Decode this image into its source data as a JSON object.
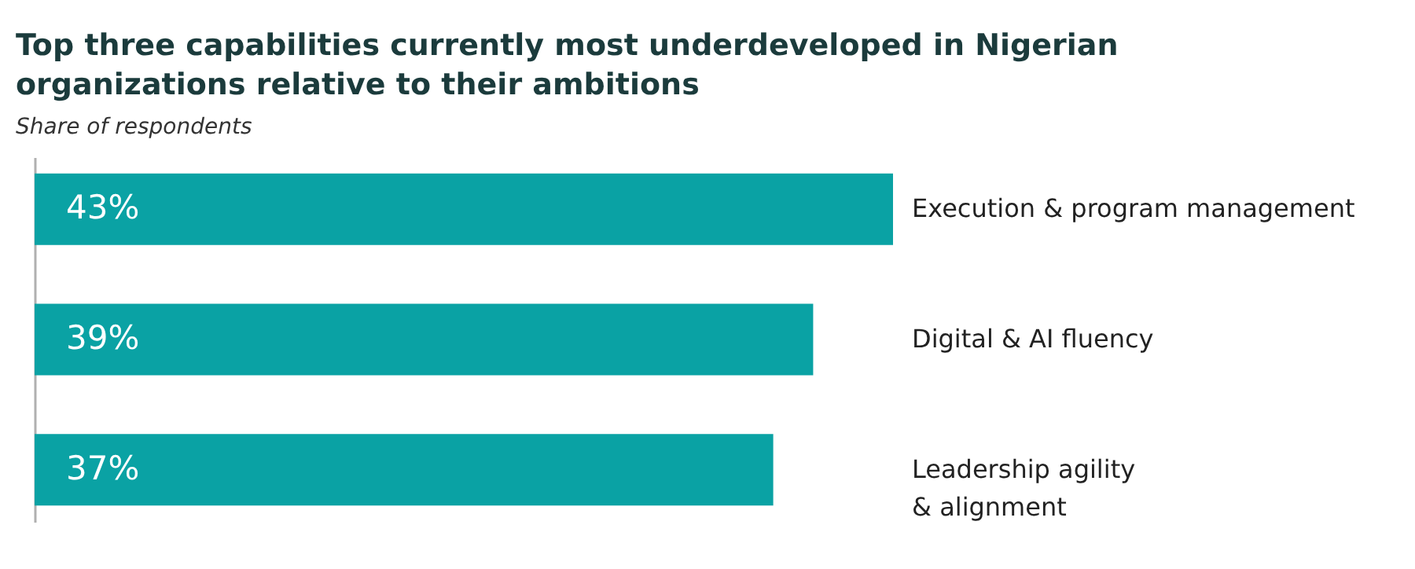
{
  "chart_data": {
    "type": "bar",
    "orientation": "horizontal",
    "title": "Top three capabilities currently most underdeveloped in Nigerian organizations relative to their ambitions",
    "subtitle": "Share of respondents",
    "categories": [
      "Execution & program management",
      "Digital & AI fluency",
      "Leadership agility\n& alignment"
    ],
    "values": [
      43,
      39,
      37
    ],
    "color": "#0aa2a4",
    "value_labels": [
      "43%",
      "39%",
      "37%"
    ],
    "tick_labels": false
  }
}
